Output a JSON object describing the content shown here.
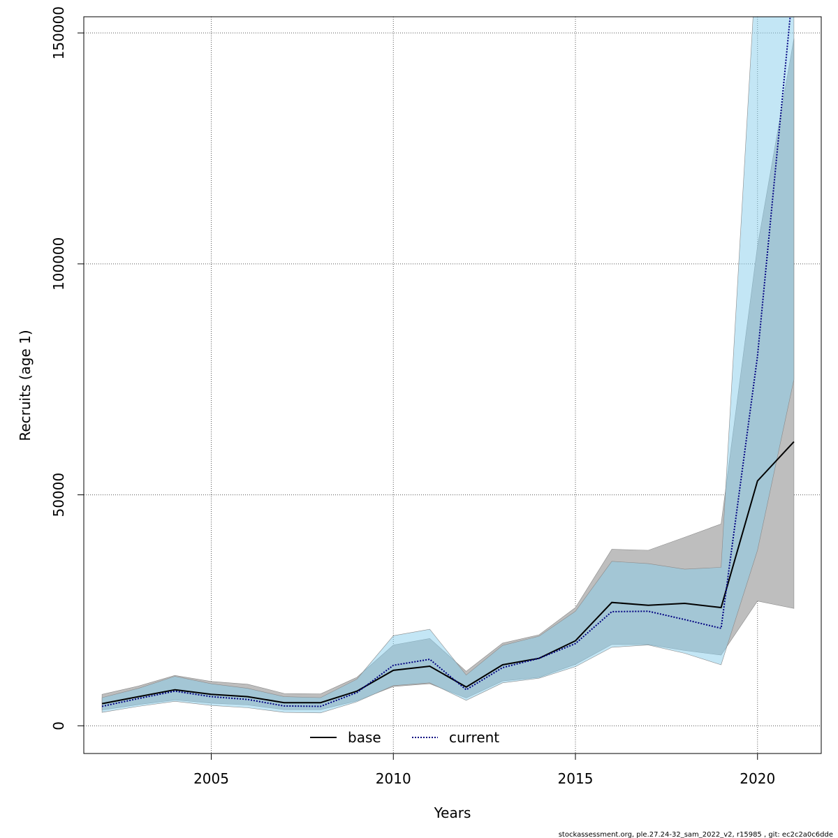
{
  "chart_data": {
    "type": "line",
    "xlabel": "Years",
    "ylabel": "Recruits (age 1)",
    "xlim": [
      2001.5,
      2021.75
    ],
    "ylim": [
      -6000,
      153500
    ],
    "xticks": [
      2005,
      2010,
      2015,
      2020
    ],
    "yticks": [
      0,
      50000,
      100000,
      150000
    ],
    "grid": true,
    "legend_position": "bottom-center",
    "series": [
      {
        "name": "base",
        "color": "#000000",
        "line_style": "solid",
        "band_color": "#bebebe",
        "x": [
          2002,
          2003,
          2004,
          2005,
          2006,
          2007,
          2008,
          2009,
          2010,
          2011,
          2012,
          2013,
          2014,
          2015,
          2016,
          2017,
          2018,
          2019,
          2020,
          2021
        ],
        "values": [
          4800,
          6300,
          7800,
          6800,
          6300,
          5000,
          5000,
          7500,
          12000,
          12900,
          8400,
          13200,
          14600,
          18400,
          26700,
          26100,
          26500,
          25600,
          53000,
          61500
        ],
        "lower": [
          3400,
          4600,
          5600,
          4900,
          4500,
          3500,
          3500,
          5400,
          8500,
          9100,
          6000,
          9700,
          10500,
          13300,
          17600,
          17600,
          16300,
          15300,
          27000,
          25400
        ],
        "upper": [
          6800,
          8600,
          10900,
          9600,
          9000,
          7000,
          6900,
          10500,
          17500,
          18900,
          11800,
          17900,
          19700,
          25600,
          38200,
          38000,
          40800,
          43700,
          103800,
          148800
        ]
      },
      {
        "name": "current",
        "color": "#000080",
        "line_style": "dotted",
        "band_color": "#87ceeb",
        "x": [
          2002,
          2003,
          2004,
          2005,
          2006,
          2007,
          2008,
          2009,
          2010,
          2011,
          2012,
          2013,
          2014,
          2015,
          2016,
          2017,
          2018,
          2019,
          2020,
          2021
        ],
        "values": [
          4200,
          5900,
          7500,
          6300,
          5700,
          4300,
          4200,
          7200,
          13100,
          14400,
          7800,
          12600,
          14600,
          17800,
          24700,
          24800,
          23000,
          21100,
          80000,
          162000
        ],
        "lower": [
          2900,
          4200,
          5300,
          4400,
          3900,
          2900,
          2800,
          5200,
          8700,
          9300,
          5500,
          9300,
          10300,
          12800,
          17000,
          17500,
          15700,
          13200,
          38000,
          75000
        ],
        "upper": [
          6100,
          8100,
          10700,
          9100,
          8100,
          6300,
          6100,
          10100,
          19500,
          20900,
          11000,
          17400,
          19400,
          24800,
          35600,
          35100,
          33900,
          34300,
          170000,
          170000
        ]
      }
    ]
  },
  "footer_text": "stockassessment.org, ple.27.24-32_sam_2022_v2, r15985 , git: ec2c2a0c6dde"
}
